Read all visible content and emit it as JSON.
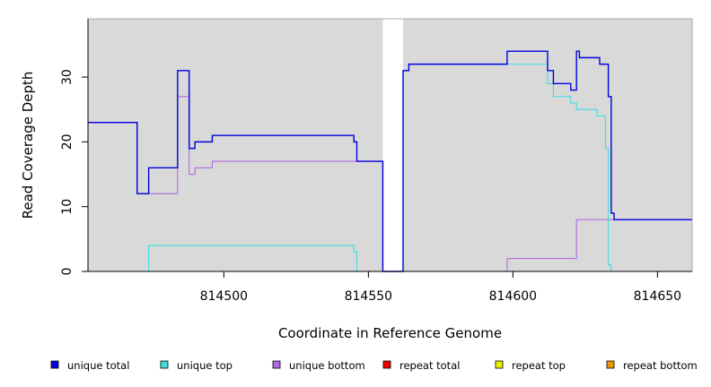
{
  "chart_data": {
    "type": "line",
    "step": true,
    "xlabel": "Coordinate in Reference Genome",
    "ylabel": "Read Coverage Depth",
    "xlim": [
      814453,
      814662
    ],
    "ylim": [
      0,
      39
    ],
    "x_ticks": [
      814500,
      814550,
      814600,
      814650
    ],
    "x_tick_labels": [
      "814500",
      "814550",
      "814600",
      "814650"
    ],
    "y_ticks": [
      0,
      10,
      20,
      30
    ],
    "y_tick_labels": [
      "0",
      "10",
      "20",
      "30"
    ],
    "gap_region": [
      814555,
      814562
    ],
    "grid": false,
    "legend_placement": "bottom",
    "background_color": "#d9d9d9",
    "series": [
      {
        "name": "unique total",
        "color": "#0000dd",
        "x": [
          814453,
          814470,
          814472,
          814474,
          814484,
          814488,
          814490,
          814496,
          814545,
          814546,
          814555,
          814562,
          814564,
          814598,
          814612,
          814614,
          814620,
          814622,
          814623,
          814630,
          814633,
          814634,
          814635,
          814662
        ],
        "y": [
          23,
          12,
          12,
          16,
          31,
          19,
          20,
          21,
          20,
          17,
          0,
          31,
          32,
          34,
          31,
          29,
          28,
          34,
          33,
          32,
          27,
          9,
          8,
          8
        ]
      },
      {
        "name": "unique top",
        "color": "#3ddede",
        "x": [
          814453,
          814474,
          814545,
          814546,
          814555,
          814562,
          814564,
          814598,
          814612,
          814614,
          814618,
          814620,
          814622,
          814629,
          814632,
          814633,
          814634,
          814662
        ],
        "y": [
          0,
          4,
          3,
          0,
          0,
          31,
          32,
          32,
          29,
          27,
          27,
          26,
          25,
          24,
          19,
          1,
          0,
          0
        ]
      },
      {
        "name": "unique bottom",
        "color": "#b06be0",
        "x": [
          814453,
          814470,
          814484,
          814488,
          814490,
          814496,
          814555,
          814562,
          814598,
          814622,
          814633,
          814662
        ],
        "y": [
          23,
          12,
          27,
          15,
          16,
          17,
          0,
          0,
          2,
          8,
          8,
          8
        ]
      },
      {
        "name": "repeat total",
        "color": "#ee0000",
        "x": [
          814453,
          814662
        ],
        "y": [
          0,
          0
        ]
      },
      {
        "name": "repeat top",
        "color": "#eeee00",
        "x": [
          814453,
          814662
        ],
        "y": [
          0,
          0
        ]
      },
      {
        "name": "repeat bottom",
        "color": "#ee9900",
        "x": [
          814453,
          814662
        ],
        "y": [
          0,
          0
        ]
      }
    ]
  }
}
